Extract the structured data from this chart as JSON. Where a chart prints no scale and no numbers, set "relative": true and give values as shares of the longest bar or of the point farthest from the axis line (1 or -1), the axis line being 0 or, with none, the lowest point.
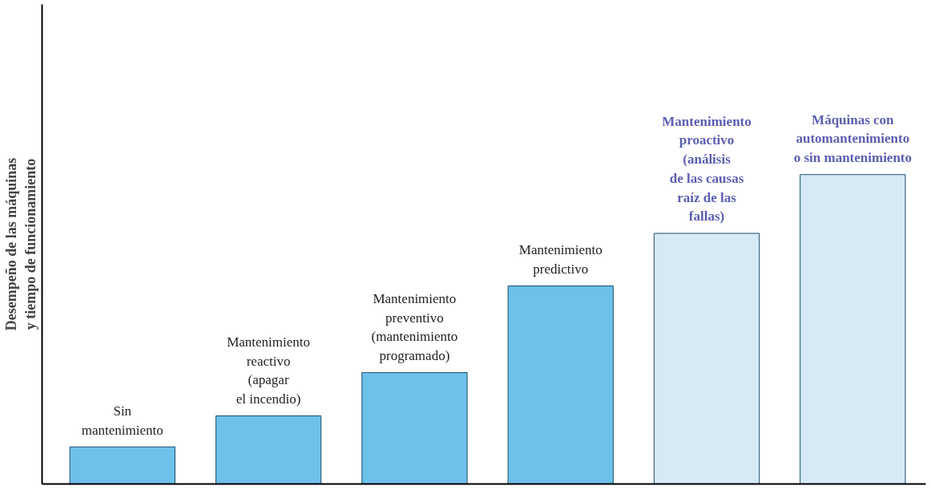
{
  "chart_data": {
    "type": "bar",
    "relative": true,
    "ylabel": "Desempeño de las máquinas\ny tiempo de funcionamiento",
    "categories": [
      "Sin\nmantenimiento",
      "Mantenimiento\nreactivo\n(apagar\nel incendio)",
      "Mantenimiento\npreventivo\n(mantenimiento\nprogramado)",
      "Mantenimiento\npredictivo",
      "Mantenimiento\nproactivo\n(análisis\nde las causas\nraíz de las\nfallas)",
      "Máquinas con\nautomantenimiento\no sin mantenimiento"
    ],
    "values": [
      0.12,
      0.22,
      0.36,
      0.64,
      0.81,
      1.0
    ],
    "colors": [
      "#6ec1ea",
      "#6ec1ea",
      "#6ec1ea",
      "#6ec1ea",
      "#d6eaf5",
      "#d6eaf5"
    ]
  }
}
